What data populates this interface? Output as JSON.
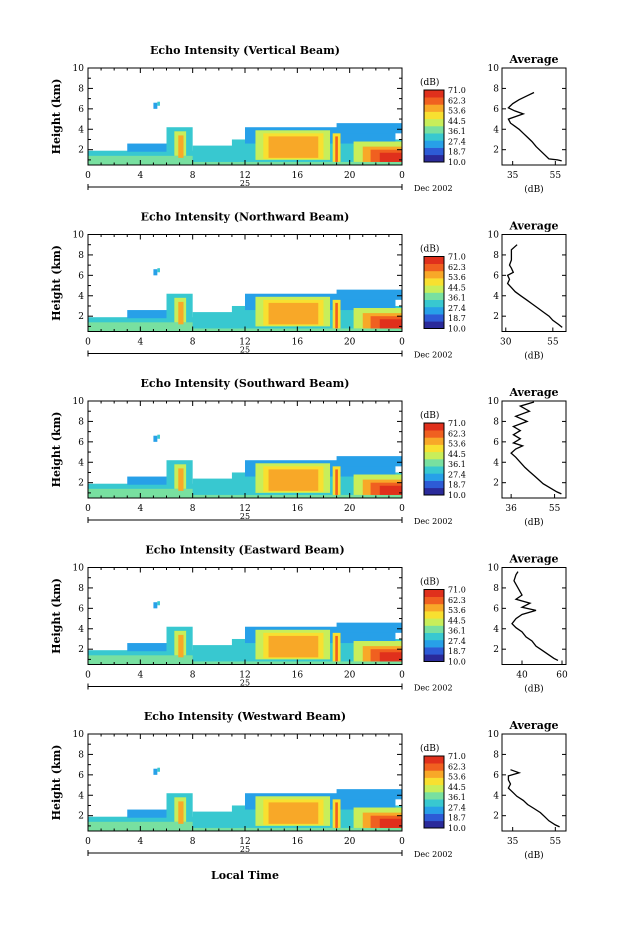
{
  "colors": [
    "#2a2a9a",
    "#2d5bd6",
    "#27a0e8",
    "#38c8d0",
    "#78e0a0",
    "#c8ee5a",
    "#f8e030",
    "#f8a828",
    "#f06020",
    "#e0301c"
  ],
  "figure": {
    "xlabel_bottom": "Local Time"
  },
  "chart_data": [
    {
      "type": "heatmap",
      "title": "Echo Intensity (Vertical Beam)",
      "ylabel": "Height (km)",
      "x_ticks": [
        "0",
        "4",
        "8",
        "12",
        "16",
        "20",
        "0"
      ],
      "y_ticks": [
        "2",
        "4",
        "6",
        "8",
        "10"
      ],
      "xlim": [
        0,
        24
      ],
      "ylim": [
        0.5,
        10
      ],
      "day_label": "25",
      "date_label": "Dec 2002",
      "colorbar": {
        "unit": "(dB)",
        "ticks": [
          "71.0",
          "62.3",
          "53.6",
          "44.5",
          "36.1",
          "27.4",
          "18.7",
          "10.0"
        ]
      },
      "average": {
        "title": "Average",
        "xlabel": "(dB)",
        "x_ticks": [
          "35",
          "55"
        ],
        "x_tick_values": [
          35,
          55
        ],
        "xlim": [
          30,
          60
        ],
        "y_ticks": [
          "2",
          "4",
          "6",
          "8",
          "10"
        ],
        "profile": [
          [
            58,
            0.9
          ],
          [
            56,
            1.0
          ],
          [
            52,
            1.1
          ],
          [
            50,
            1.5
          ],
          [
            48,
            1.9
          ],
          [
            46,
            2.3
          ],
          [
            44,
            2.8
          ],
          [
            42,
            3.2
          ],
          [
            40,
            3.6
          ],
          [
            38,
            4.0
          ],
          [
            36,
            4.3
          ],
          [
            34,
            4.6
          ],
          [
            33,
            5.0
          ],
          [
            40,
            5.5
          ],
          [
            36,
            5.8
          ],
          [
            33,
            6.1
          ],
          [
            35,
            6.5
          ],
          [
            38,
            6.9
          ],
          [
            42,
            7.3
          ],
          [
            45,
            7.6
          ]
        ]
      }
    },
    {
      "type": "heatmap",
      "title": "Echo Intensity (Northward Beam)",
      "ylabel": "Height (km)",
      "x_ticks": [
        "0",
        "4",
        "8",
        "12",
        "16",
        "20",
        "0"
      ],
      "y_ticks": [
        "2",
        "4",
        "6",
        "8",
        "10"
      ],
      "xlim": [
        0,
        24
      ],
      "ylim": [
        0.5,
        10
      ],
      "day_label": "25",
      "date_label": "Dec 2002",
      "colorbar": {
        "unit": "(dB)",
        "ticks": [
          "71.0",
          "62.3",
          "53.6",
          "44.5",
          "36.1",
          "27.4",
          "18.7",
          "10.0"
        ]
      },
      "average": {
        "title": "Average",
        "xlabel": "(dB)",
        "x_ticks": [
          "30",
          "55"
        ],
        "x_tick_values": [
          30,
          55
        ],
        "xlim": [
          28,
          62
        ],
        "y_ticks": [
          "2",
          "4",
          "6",
          "8",
          "10"
        ],
        "profile": [
          [
            60,
            0.9
          ],
          [
            58,
            1.2
          ],
          [
            55,
            1.6
          ],
          [
            53,
            2.0
          ],
          [
            50,
            2.4
          ],
          [
            47,
            2.8
          ],
          [
            44,
            3.2
          ],
          [
            41,
            3.6
          ],
          [
            38,
            4.0
          ],
          [
            35,
            4.4
          ],
          [
            33,
            4.8
          ],
          [
            31,
            5.2
          ],
          [
            32,
            5.6
          ],
          [
            31,
            6.0
          ],
          [
            34,
            6.3
          ],
          [
            33,
            6.7
          ],
          [
            32,
            7.0
          ],
          [
            33,
            7.5
          ],
          [
            33,
            8.5
          ],
          [
            36,
            9.0
          ]
        ]
      }
    },
    {
      "type": "heatmap",
      "title": "Echo Intensity (Southward Beam)",
      "ylabel": "Height (km)",
      "x_ticks": [
        "0",
        "4",
        "8",
        "12",
        "16",
        "20",
        "0"
      ],
      "y_ticks": [
        "2",
        "4",
        "6",
        "8",
        "10"
      ],
      "xlim": [
        0,
        24
      ],
      "ylim": [
        0.5,
        10
      ],
      "day_label": "25",
      "date_label": "Dec 2002",
      "colorbar": {
        "unit": "(dB)",
        "ticks": [
          "71.0",
          "62.3",
          "53.6",
          "44.5",
          "36.1",
          "27.4",
          "18.7",
          "10.0"
        ]
      },
      "average": {
        "title": "Average",
        "xlabel": "(dB)",
        "x_ticks": [
          "36",
          "55"
        ],
        "x_tick_values": [
          36,
          55
        ],
        "xlim": [
          32,
          60
        ],
        "y_ticks": [
          "2",
          "4",
          "6",
          "8",
          "10"
        ],
        "profile": [
          [
            58,
            0.9
          ],
          [
            56,
            1.1
          ],
          [
            53,
            1.5
          ],
          [
            50,
            1.9
          ],
          [
            48,
            2.3
          ],
          [
            46,
            2.7
          ],
          [
            44,
            3.1
          ],
          [
            42,
            3.5
          ],
          [
            40,
            4.0
          ],
          [
            38,
            4.5
          ],
          [
            36,
            4.9
          ],
          [
            38,
            5.3
          ],
          [
            41,
            5.6
          ],
          [
            37,
            5.9
          ],
          [
            40,
            6.3
          ],
          [
            37,
            6.7
          ],
          [
            40,
            7.1
          ],
          [
            37,
            7.5
          ],
          [
            43,
            8.0
          ],
          [
            38,
            8.5
          ],
          [
            44,
            9.0
          ],
          [
            40,
            9.5
          ],
          [
            46,
            9.9
          ]
        ]
      }
    },
    {
      "type": "heatmap",
      "title": "Echo Intensity (Eastward Beam)",
      "ylabel": "Height (km)",
      "x_ticks": [
        "0",
        "4",
        "8",
        "12",
        "16",
        "20",
        "0"
      ],
      "y_ticks": [
        "2",
        "4",
        "6",
        "8",
        "10"
      ],
      "xlim": [
        0,
        24
      ],
      "ylim": [
        0.5,
        10
      ],
      "day_label": "25",
      "date_label": "Dec 2002",
      "colorbar": {
        "unit": "(dB)",
        "ticks": [
          "71.0",
          "62.3",
          "53.6",
          "44.5",
          "36.1",
          "27.4",
          "18.7",
          "10.0"
        ]
      },
      "average": {
        "title": "Average",
        "xlabel": "(dB)",
        "x_ticks": [
          "40",
          "60"
        ],
        "x_tick_values": [
          40,
          60
        ],
        "xlim": [
          30,
          62
        ],
        "y_ticks": [
          "2",
          "4",
          "6",
          "8",
          "10"
        ],
        "profile": [
          [
            58,
            0.9
          ],
          [
            56,
            1.1
          ],
          [
            53,
            1.5
          ],
          [
            50,
            1.9
          ],
          [
            47,
            2.3
          ],
          [
            45,
            2.8
          ],
          [
            42,
            3.2
          ],
          [
            40,
            3.7
          ],
          [
            37,
            4.1
          ],
          [
            35,
            4.5
          ],
          [
            37,
            5.0
          ],
          [
            40,
            5.4
          ],
          [
            47,
            5.8
          ],
          [
            40,
            6.1
          ],
          [
            44,
            6.5
          ],
          [
            37,
            6.9
          ],
          [
            40,
            7.3
          ],
          [
            38,
            8.0
          ],
          [
            36,
            8.7
          ],
          [
            37,
            9.3
          ],
          [
            38,
            9.6
          ]
        ]
      }
    },
    {
      "type": "heatmap",
      "title": "Echo Intensity (Westward Beam)",
      "ylabel": "Height (km)",
      "x_ticks": [
        "0",
        "4",
        "8",
        "12",
        "16",
        "20",
        "0"
      ],
      "y_ticks": [
        "2",
        "4",
        "6",
        "8",
        "10"
      ],
      "xlim": [
        0,
        24
      ],
      "ylim": [
        0.5,
        10
      ],
      "day_label": "25",
      "date_label": "Dec 2002",
      "colorbar": {
        "unit": "(dB)",
        "ticks": [
          "71.0",
          "62.3",
          "53.6",
          "44.5",
          "36.1",
          "27.4",
          "18.7",
          "10.0"
        ]
      },
      "average": {
        "title": "Average",
        "xlabel": "(dB)",
        "x_ticks": [
          "35",
          "55"
        ],
        "x_tick_values": [
          35,
          55
        ],
        "xlim": [
          30,
          60
        ],
        "y_ticks": [
          "2",
          "4",
          "6",
          "8",
          "10"
        ],
        "profile": [
          [
            57,
            0.9
          ],
          [
            55,
            1.1
          ],
          [
            52,
            1.5
          ],
          [
            50,
            1.9
          ],
          [
            48,
            2.3
          ],
          [
            45,
            2.7
          ],
          [
            42,
            3.1
          ],
          [
            40,
            3.5
          ],
          [
            37,
            3.9
          ],
          [
            35,
            4.3
          ],
          [
            33,
            4.7
          ],
          [
            34,
            5.1
          ],
          [
            33,
            5.5
          ],
          [
            33,
            5.9
          ],
          [
            38,
            6.2
          ],
          [
            34,
            6.5
          ]
        ]
      }
    }
  ]
}
